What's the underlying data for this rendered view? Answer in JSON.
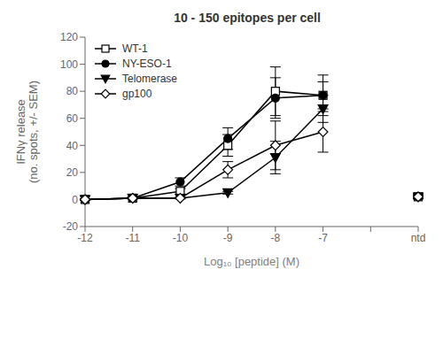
{
  "chart_data": {
    "type": "line",
    "title": "10 - 150 epitopes per cell",
    "x_label": "Log₁₀ [peptide] (M)",
    "y_label": "IFNγ release\n(no. spots, +/- SEM)",
    "categories": [
      "-12",
      "-11",
      "-10",
      "-9",
      "-8",
      "-7",
      null,
      "ntd"
    ],
    "series": [
      {
        "name": "WT-1",
        "color": "#000000",
        "marker": "square-open",
        "values": [
          0,
          1,
          6,
          40,
          80,
          77,
          null,
          2
        ],
        "errors": [
          0.5,
          0.5,
          2,
          8,
          18,
          10,
          null,
          1.5
        ]
      },
      {
        "name": "NY-ESO-1",
        "color": "#000000",
        "marker": "circle",
        "values": [
          0,
          1,
          13,
          45,
          75,
          77,
          null,
          2
        ],
        "errors": [
          0.5,
          0.5,
          3,
          8,
          15,
          15,
          null,
          1.5
        ]
      },
      {
        "name": "Telomerase",
        "color": "#000000",
        "marker": "triangle-down",
        "values": [
          0,
          1,
          1,
          5,
          31,
          67,
          null,
          2
        ],
        "errors": [
          0.5,
          0.5,
          0.5,
          1,
          12,
          10,
          null,
          1
        ]
      },
      {
        "name": "gp100",
        "color": "#000000",
        "marker": "diamond-open",
        "values": [
          0,
          1,
          1,
          22,
          40,
          50,
          null,
          2
        ],
        "errors": [
          0.5,
          0.5,
          0.5,
          6,
          18,
          15,
          null,
          1
        ]
      }
    ],
    "ylim": [
      -20,
      120
    ],
    "yticks": [
      -20,
      0,
      20,
      40,
      60,
      80,
      100,
      120
    ],
    "grid": false,
    "legend": "upper left"
  }
}
